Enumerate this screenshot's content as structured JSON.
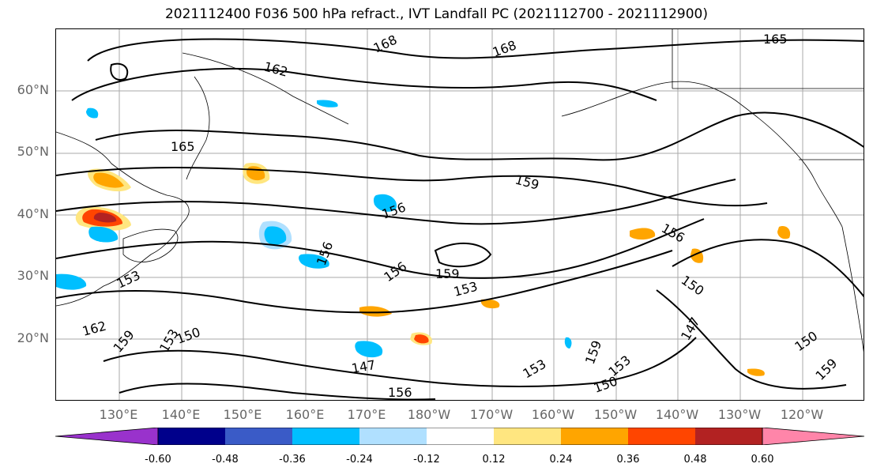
{
  "title": "2021112400 F036 500 hPa refract., IVT Landfall PC (2021112700 - 2021112900)",
  "lat_labels": [
    "60°N",
    "50°N",
    "40°N",
    "30°N",
    "20°N"
  ],
  "lon_labels": [
    "130°E",
    "140°E",
    "150°E",
    "160°E",
    "170°E",
    "180°W",
    "170°W",
    "160°W",
    "150°W",
    "140°W",
    "130°W",
    "120°W"
  ],
  "contour_labels": [
    "168",
    "162",
    "165",
    "168",
    "165",
    "159",
    "156",
    "156",
    "159",
    "153",
    "156",
    "156",
    "150",
    "147",
    "147",
    "150",
    "162",
    "159",
    "153",
    "153",
    "150",
    "153",
    "159",
    "150",
    "159",
    "153",
    "156"
  ],
  "colorbar": {
    "tick_labels": [
      "-0.60",
      "-0.48",
      "-0.36",
      "-0.24",
      "-0.12",
      "0.12",
      "0.24",
      "0.36",
      "0.48",
      "0.60"
    ],
    "colors": [
      "#9932cc",
      "#00008b",
      "#3a5bc7",
      "#00bfff",
      "#b0e0ff",
      "#ffffff",
      "#ffe680",
      "#ffa500",
      "#ff4500",
      "#b22222",
      "#ff85a9"
    ]
  }
}
